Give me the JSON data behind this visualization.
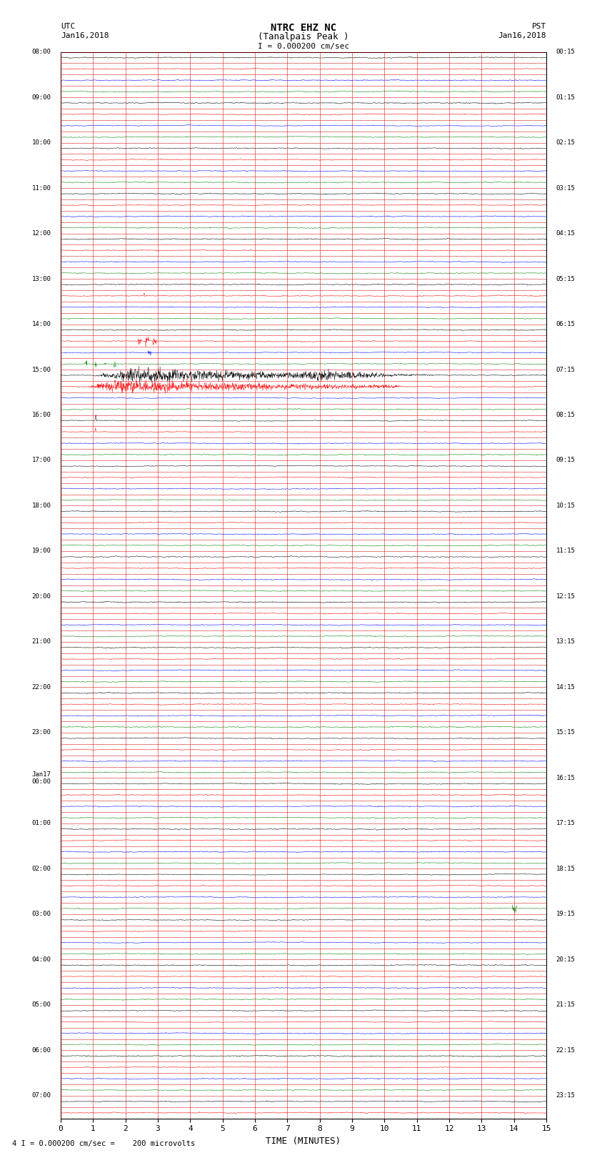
{
  "title_line1": "NTRC EHZ NC",
  "title_line2": "(Tanalpais Peak )",
  "scale_label": "I = 0.000200 cm/sec",
  "bottom_label": "4 I = 0.000200 cm/sec =    200 microvolts",
  "xlabel": "TIME (MINUTES)",
  "xlim": [
    0,
    15
  ],
  "xticks": [
    0,
    1,
    2,
    3,
    4,
    5,
    6,
    7,
    8,
    9,
    10,
    11,
    12,
    13,
    14,
    15
  ],
  "colors_cycle": [
    "black",
    "red",
    "blue",
    "green"
  ],
  "background_color": "white",
  "grid_color": "#cc0000",
  "figsize": [
    8.5,
    16.13
  ],
  "dpi": 100,
  "left_times_utc": [
    "08:00",
    "",
    "",
    "",
    "09:00",
    "",
    "",
    "",
    "10:00",
    "",
    "",
    "",
    "11:00",
    "",
    "",
    "",
    "12:00",
    "",
    "",
    "",
    "13:00",
    "",
    "",
    "",
    "14:00",
    "",
    "",
    "",
    "15:00",
    "",
    "",
    "",
    "16:00",
    "",
    "",
    "",
    "17:00",
    "",
    "",
    "",
    "18:00",
    "",
    "",
    "",
    "19:00",
    "",
    "",
    "",
    "20:00",
    "",
    "",
    "",
    "21:00",
    "",
    "",
    "",
    "22:00",
    "",
    "",
    "",
    "23:00",
    "",
    "",
    "",
    "Jan17\n00:00",
    "",
    "",
    "",
    "01:00",
    "",
    "",
    "",
    "02:00",
    "",
    "",
    "",
    "03:00",
    "",
    "",
    "",
    "04:00",
    "",
    "",
    "",
    "05:00",
    "",
    "",
    "",
    "06:00",
    "",
    "",
    "",
    "07:00",
    ""
  ],
  "right_times_pst": [
    "00:15",
    "",
    "",
    "",
    "01:15",
    "",
    "",
    "",
    "02:15",
    "",
    "",
    "",
    "03:15",
    "",
    "",
    "",
    "04:15",
    "",
    "",
    "",
    "05:15",
    "",
    "",
    "",
    "06:15",
    "",
    "",
    "",
    "07:15",
    "",
    "",
    "",
    "08:15",
    "",
    "",
    "",
    "09:15",
    "",
    "",
    "",
    "10:15",
    "",
    "",
    "",
    "11:15",
    "",
    "",
    "",
    "12:15",
    "",
    "",
    "",
    "13:15",
    "",
    "",
    "",
    "14:15",
    "",
    "",
    "",
    "15:15",
    "",
    "",
    "",
    "16:15",
    "",
    "",
    "",
    "17:15",
    "",
    "",
    "",
    "18:15",
    "",
    "",
    "",
    "19:15",
    "",
    "",
    "",
    "20:15",
    "",
    "",
    "",
    "21:15",
    "",
    "",
    "",
    "22:15",
    "",
    "",
    "",
    "23:15",
    ""
  ]
}
